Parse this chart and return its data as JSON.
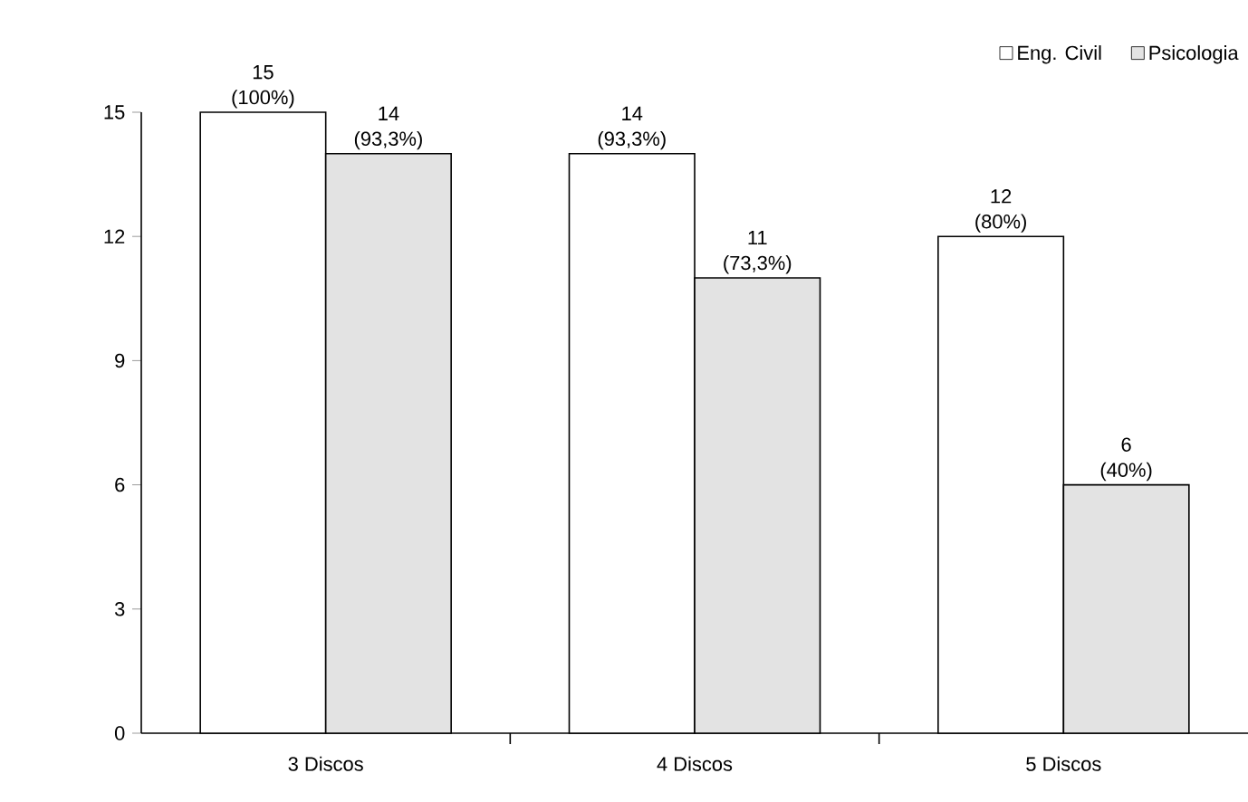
{
  "chart_data": {
    "type": "bar",
    "categories": [
      "3 Discos",
      "4 Discos",
      "5 Discos"
    ],
    "series": [
      {
        "name": "Eng. Civil",
        "color": "#ffffff",
        "values": [
          15,
          14,
          12
        ],
        "value_labels": [
          "15 (100%)",
          "14 (93,3%)",
          "12 (80%)"
        ]
      },
      {
        "name": "Psicologia",
        "color": "#e3e3e3",
        "values": [
          14,
          11,
          6
        ],
        "value_labels": [
          "14 (93,3%)",
          "11 (73,3%)",
          "6 (40%)"
        ]
      }
    ],
    "ylim": [
      0,
      15
    ],
    "yticks": [
      0,
      3,
      6,
      9,
      12,
      15
    ],
    "grid": false,
    "legend": "top right"
  }
}
